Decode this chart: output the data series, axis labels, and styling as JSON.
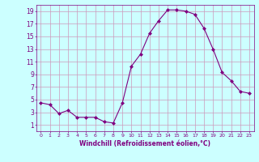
{
  "x": [
    0,
    1,
    2,
    3,
    4,
    5,
    6,
    7,
    8,
    9,
    10,
    11,
    12,
    13,
    14,
    15,
    16,
    17,
    18,
    19,
    20,
    21,
    22,
    23
  ],
  "y": [
    4.5,
    4.2,
    2.8,
    3.3,
    2.2,
    2.2,
    2.2,
    1.5,
    1.3,
    4.5,
    10.3,
    12.2,
    15.5,
    17.5,
    19.2,
    19.2,
    19.0,
    18.5,
    16.3,
    13.0,
    9.3,
    8.0,
    6.3,
    6.0
  ],
  "line_color": "#800080",
  "marker": "D",
  "marker_size": 2,
  "bg_color": "#ccffff",
  "grid_color": "#cc99bb",
  "xlabel": "Windchill (Refroidissement éolien,°C)",
  "xlabel_color": "#800080",
  "tick_color": "#800080",
  "xlim": [
    -0.5,
    23.5
  ],
  "ylim": [
    0,
    20
  ],
  "yticks": [
    1,
    3,
    5,
    7,
    9,
    11,
    13,
    15,
    17,
    19
  ],
  "xticks": [
    0,
    1,
    2,
    3,
    4,
    5,
    6,
    7,
    8,
    9,
    10,
    11,
    12,
    13,
    14,
    15,
    16,
    17,
    18,
    19,
    20,
    21,
    22,
    23
  ]
}
